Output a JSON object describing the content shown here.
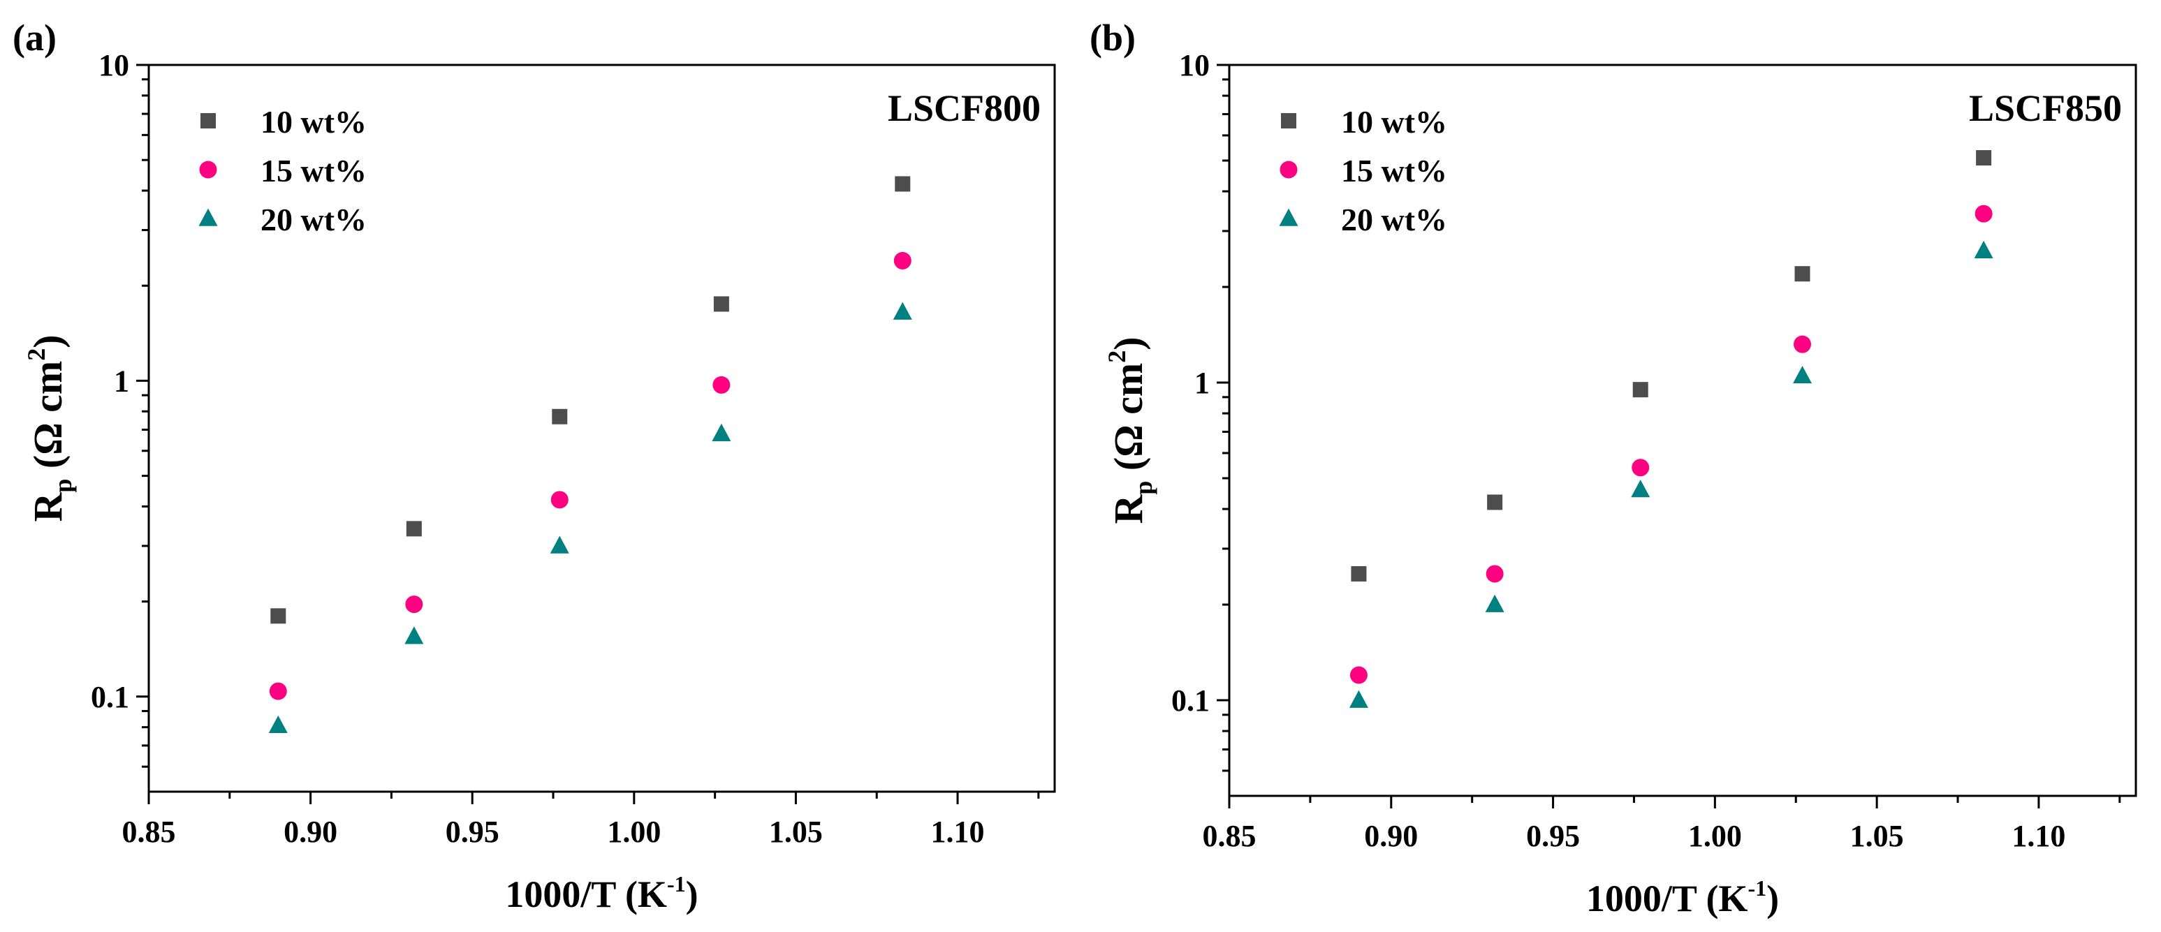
{
  "chart_data": [
    {
      "type": "scatter",
      "panel_label": "(a)",
      "title": "LSCF800",
      "xlabel": "1000/T (K",
      "xlabel_sup": "-1",
      "xlabel_end": ")",
      "ylabel_main": "R",
      "ylabel_sub": "p",
      "ylabel_unit": " (Ω cm",
      "ylabel_sup": "2",
      "ylabel_end": ")",
      "xlim": [
        0.85,
        1.13
      ],
      "ylim": [
        0.05,
        10
      ],
      "yscale": "log",
      "xticks": [
        0.85,
        0.9,
        0.95,
        1.0,
        1.05,
        1.1
      ],
      "xtick_labels": [
        "0.85",
        "0.90",
        "0.95",
        "1.00",
        "1.05",
        "1.10"
      ],
      "yticks": [
        0.1,
        1,
        10
      ],
      "ytick_labels": [
        "0.1",
        "1",
        "10"
      ],
      "legend_position": "top-left",
      "series": [
        {
          "name": "10 wt%",
          "marker": "square",
          "color": "#4d4d4d",
          "x": [
            0.89,
            0.932,
            0.977,
            1.027,
            1.083
          ],
          "values": [
            0.18,
            0.34,
            0.77,
            1.75,
            4.2
          ]
        },
        {
          "name": "15 wt%",
          "marker": "circle",
          "color": "#ff0080",
          "x": [
            0.89,
            0.932,
            0.977,
            1.027,
            1.083
          ],
          "values": [
            0.104,
            0.196,
            0.42,
            0.97,
            2.4
          ]
        },
        {
          "name": "20 wt%",
          "marker": "triangle",
          "color": "#008080",
          "x": [
            0.89,
            0.932,
            0.977,
            1.027,
            1.083
          ],
          "values": [
            0.081,
            0.155,
            0.3,
            0.68,
            1.65
          ]
        }
      ]
    },
    {
      "type": "scatter",
      "panel_label": "(b)",
      "title": "LSCF850",
      "xlabel": "1000/T (K",
      "xlabel_sup": "-1",
      "xlabel_end": ")",
      "ylabel_main": "R",
      "ylabel_sub": "p",
      "ylabel_unit": " (Ω cm",
      "ylabel_sup": "2",
      "ylabel_end": ")",
      "xlim": [
        0.85,
        1.13
      ],
      "ylim": [
        0.05,
        10
      ],
      "yscale": "log",
      "xticks": [
        0.85,
        0.9,
        0.95,
        1.0,
        1.05,
        1.1
      ],
      "xtick_labels": [
        "0.85",
        "0.90",
        "0.95",
        "1.00",
        "1.05",
        "1.10"
      ],
      "yticks": [
        0.1,
        1,
        10
      ],
      "ytick_labels": [
        "0.1",
        "1",
        "10"
      ],
      "legend_position": "top-left",
      "series": [
        {
          "name": "10 wt%",
          "marker": "square",
          "color": "#4d4d4d",
          "x": [
            0.89,
            0.932,
            0.977,
            1.027,
            1.083
          ],
          "values": [
            0.25,
            0.42,
            0.95,
            2.2,
            5.1
          ]
        },
        {
          "name": "15 wt%",
          "marker": "circle",
          "color": "#ff0080",
          "x": [
            0.89,
            0.932,
            0.977,
            1.027,
            1.083
          ],
          "values": [
            0.12,
            0.25,
            0.54,
            1.32,
            3.4
          ]
        },
        {
          "name": "20 wt%",
          "marker": "triangle",
          "color": "#008080",
          "x": [
            0.89,
            0.932,
            0.977,
            1.027,
            1.083
          ],
          "values": [
            0.1,
            0.2,
            0.46,
            1.05,
            2.6
          ]
        }
      ]
    }
  ]
}
